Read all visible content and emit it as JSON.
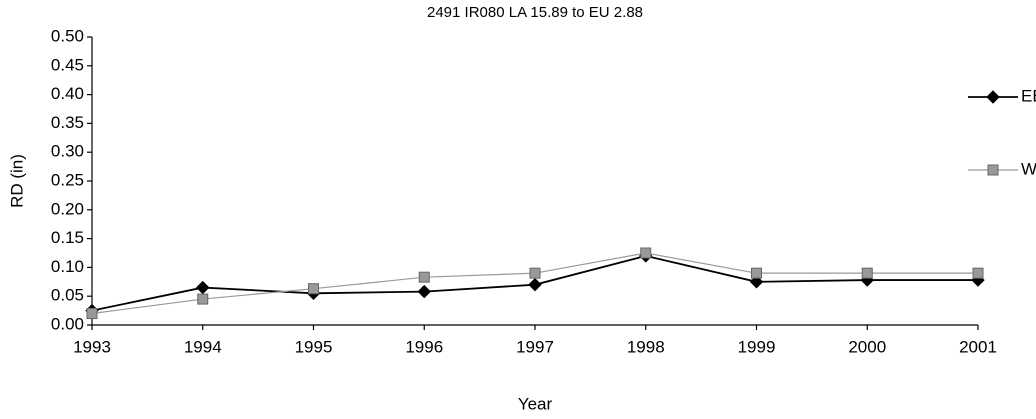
{
  "chart_data": {
    "type": "line",
    "title": "2491 IR080 LA 15.89 to EU 2.88",
    "x_label": "Year",
    "y_label": "RD (in)",
    "categories": [
      "1993",
      "1994",
      "1995",
      "1996",
      "1997",
      "1998",
      "1999",
      "2000",
      "2001"
    ],
    "series": [
      {
        "name": "EB",
        "color": "#000000",
        "marker": "diamond",
        "values": [
          0.025,
          0.065,
          0.055,
          0.058,
          0.07,
          0.12,
          0.075,
          0.078,
          0.078
        ]
      },
      {
        "name": "WB",
        "color": "#999999",
        "marker": "square",
        "values": [
          0.02,
          0.045,
          0.063,
          0.083,
          0.09,
          0.125,
          0.09,
          0.09,
          0.09
        ]
      }
    ],
    "ylim": [
      0,
      0.5
    ],
    "yticks": [
      {
        "value": 0,
        "label": "0.00"
      },
      {
        "value": 0.05,
        "label": "0.05"
      },
      {
        "value": 0.1,
        "label": "0.10"
      },
      {
        "value": 0.15,
        "label": "0.15"
      },
      {
        "value": 0.2,
        "label": "0.20"
      },
      {
        "value": 0.25,
        "label": "0.25"
      },
      {
        "value": 0.3,
        "label": "0.30"
      },
      {
        "value": 0.35,
        "label": "0.35"
      },
      {
        "value": 0.4,
        "label": "0.40"
      },
      {
        "value": 0.45,
        "label": "0.45"
      },
      {
        "value": 0.5,
        "label": "0.50"
      }
    ],
    "grid": false,
    "legend": "right"
  }
}
